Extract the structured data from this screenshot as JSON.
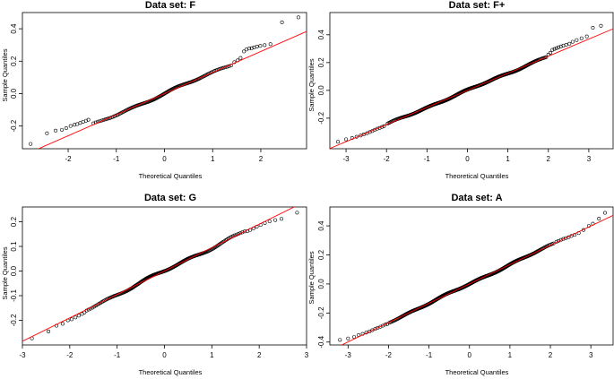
{
  "figure": {
    "colors": {
      "background": "#ffffff",
      "points": "#000000",
      "refline": "#ff0000",
      "axis": "#000000"
    }
  },
  "chart_data": [
    {
      "type": "scatter",
      "kind": "normal-qq",
      "title": "Data set:  F",
      "xlabel": "Theoretical Quantiles",
      "ylabel": "Sample Quantiles",
      "xlim": [
        -2.95,
        2.95
      ],
      "ylim": [
        -0.34,
        0.5
      ],
      "xticks": [
        -2,
        -1,
        0,
        1,
        2
      ],
      "yticks": [
        -0.2,
        0.0,
        0.2,
        0.4
      ],
      "n": 150,
      "line": {
        "intercept": 0.0,
        "slope": 0.13
      },
      "bulk": {
        "start": -1.5,
        "end": 1.4,
        "ampA": 0.004,
        "ampB": 0.005
      },
      "tail_points": [
        [
          -2.78,
          -0.31
        ],
        [
          -2.44,
          -0.245
        ],
        [
          -2.26,
          -0.228
        ],
        [
          -2.13,
          -0.223
        ],
        [
          -2.04,
          -0.213
        ],
        [
          -1.95,
          -0.2
        ],
        [
          -1.87,
          -0.192
        ],
        [
          -1.81,
          -0.188
        ],
        [
          -1.75,
          -0.181
        ],
        [
          -1.69,
          -0.174
        ],
        [
          -1.63,
          -0.167
        ],
        [
          -1.58,
          -0.161
        ],
        [
          1.45,
          0.194
        ],
        [
          1.52,
          0.205
        ],
        [
          1.58,
          0.22
        ],
        [
          1.65,
          0.26
        ],
        [
          1.7,
          0.272
        ],
        [
          1.76,
          0.278
        ],
        [
          1.81,
          0.28
        ],
        [
          1.86,
          0.285
        ],
        [
          1.92,
          0.29
        ],
        [
          1.99,
          0.294
        ],
        [
          2.08,
          0.299
        ],
        [
          2.2,
          0.305
        ],
        [
          2.44,
          0.44
        ],
        [
          2.78,
          0.47
        ]
      ]
    },
    {
      "type": "scatter",
      "kind": "normal-qq",
      "title": "Data set:  F+",
      "xlabel": "Theoretical Quantiles",
      "ylabel": "Sample Quantiles",
      "xlim": [
        -3.4,
        3.6
      ],
      "ylim": [
        -0.42,
        0.56
      ],
      "xticks": [
        -3,
        -2,
        -1,
        0,
        1,
        2,
        3
      ],
      "yticks": [
        -0.2,
        0.0,
        0.2,
        0.4
      ],
      "n": 560,
      "line": {
        "intercept": 0.0,
        "slope": 0.123
      },
      "bulk": {
        "start": -2.0,
        "end": 1.95,
        "ampA": 0.003,
        "ampB": 0.004
      },
      "tail_points": [
        [
          -3.2,
          -0.37
        ],
        [
          -3.0,
          -0.352
        ],
        [
          -2.85,
          -0.343
        ],
        [
          -2.74,
          -0.334
        ],
        [
          -2.64,
          -0.325
        ],
        [
          -2.56,
          -0.317
        ],
        [
          -2.48,
          -0.308
        ],
        [
          -2.41,
          -0.3
        ],
        [
          -2.35,
          -0.293
        ],
        [
          -2.29,
          -0.284
        ],
        [
          -2.23,
          -0.276
        ],
        [
          -2.17,
          -0.27
        ],
        [
          -2.11,
          -0.263
        ],
        [
          -2.06,
          -0.257
        ],
        [
          2.0,
          0.258
        ],
        [
          2.05,
          0.27
        ],
        [
          2.1,
          0.292
        ],
        [
          2.15,
          0.298
        ],
        [
          2.2,
          0.304
        ],
        [
          2.25,
          0.31
        ],
        [
          2.31,
          0.316
        ],
        [
          2.37,
          0.322
        ],
        [
          2.44,
          0.328
        ],
        [
          2.52,
          0.336
        ],
        [
          2.6,
          0.35
        ],
        [
          2.7,
          0.362
        ],
        [
          2.82,
          0.375
        ],
        [
          2.95,
          0.388
        ],
        [
          3.1,
          0.45
        ],
        [
          3.3,
          0.465
        ]
      ]
    },
    {
      "type": "scatter",
      "kind": "normal-qq",
      "title": "Data set:  G",
      "xlabel": "Theoretical Quantiles",
      "ylabel": "Sample Quantiles",
      "xlim": [
        -3.0,
        3.0
      ],
      "ylim": [
        -0.3,
        0.26
      ],
      "xticks": [
        -3,
        -2,
        -1,
        0,
        1,
        2,
        3
      ],
      "yticks": [
        -0.2,
        -0.1,
        0.0,
        0.1,
        0.2
      ],
      "n": 210,
      "line": {
        "intercept": 0.0,
        "slope": 0.095
      },
      "bulk": {
        "start": -1.65,
        "end": 1.7,
        "ampA": 0.003,
        "ampB": 0.004
      },
      "tail_points": [
        [
          -2.8,
          -0.273
        ],
        [
          -2.45,
          -0.245
        ],
        [
          -2.28,
          -0.222
        ],
        [
          -2.15,
          -0.214
        ],
        [
          -2.04,
          -0.2
        ],
        [
          -1.96,
          -0.196
        ],
        [
          -1.88,
          -0.188
        ],
        [
          -1.81,
          -0.181
        ],
        [
          -1.74,
          -0.174
        ],
        [
          -1.69,
          -0.168
        ],
        [
          1.75,
          0.162
        ],
        [
          1.81,
          0.167
        ],
        [
          1.88,
          0.173
        ],
        [
          1.95,
          0.18
        ],
        [
          2.03,
          0.187
        ],
        [
          2.12,
          0.195
        ],
        [
          2.22,
          0.202
        ],
        [
          2.34,
          0.207
        ],
        [
          2.47,
          0.212
        ],
        [
          2.8,
          0.237
        ]
      ]
    },
    {
      "type": "scatter",
      "kind": "normal-qq",
      "title": "Data set:  A",
      "xlabel": "Theoretical Quantiles",
      "ylabel": "Sample Quantiles",
      "xlim": [
        -3.45,
        3.55
      ],
      "ylim": [
        -0.42,
        0.53
      ],
      "xticks": [
        -3,
        -2,
        -1,
        0,
        1,
        2,
        3
      ],
      "yticks": [
        -0.4,
        -0.2,
        0.0,
        0.2,
        0.4
      ],
      "n": 560,
      "line": {
        "intercept": 0.0,
        "slope": 0.133
      },
      "bulk": {
        "start": -2.0,
        "end": 2.1,
        "ampA": 0.003,
        "ampB": 0.004
      },
      "tail_points": [
        [
          -3.2,
          -0.385
        ],
        [
          -3.0,
          -0.375
        ],
        [
          -2.85,
          -0.365
        ],
        [
          -2.74,
          -0.352
        ],
        [
          -2.64,
          -0.344
        ],
        [
          -2.55,
          -0.335
        ],
        [
          -2.47,
          -0.327
        ],
        [
          -2.4,
          -0.318
        ],
        [
          -2.33,
          -0.31
        ],
        [
          -2.27,
          -0.302
        ],
        [
          -2.2,
          -0.294
        ],
        [
          -2.14,
          -0.287
        ],
        [
          -2.08,
          -0.28
        ],
        [
          -2.03,
          -0.276
        ],
        [
          2.15,
          0.29
        ],
        [
          2.2,
          0.296
        ],
        [
          2.26,
          0.303
        ],
        [
          2.32,
          0.31
        ],
        [
          2.38,
          0.316
        ],
        [
          2.45,
          0.322
        ],
        [
          2.52,
          0.33
        ],
        [
          2.6,
          0.338
        ],
        [
          2.7,
          0.35
        ],
        [
          2.82,
          0.372
        ],
        [
          2.95,
          0.4
        ],
        [
          3.05,
          0.415
        ],
        [
          3.2,
          0.45
        ],
        [
          3.35,
          0.49
        ]
      ]
    }
  ]
}
